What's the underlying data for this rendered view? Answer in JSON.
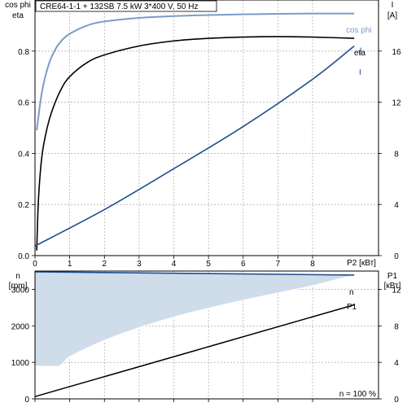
{
  "title": "CRE64-1-1 + 132SB  7.5 kW  3*400 V, 50 Hz",
  "colors": {
    "cosphi": "#7a9cc6",
    "eta": "#000000",
    "current": "#1f4f8f",
    "speed": "#1f4f8f",
    "p1": "#000000",
    "fill": "#cfdcea",
    "grid": "#9a9a9a"
  },
  "chart_data": [
    {
      "type": "line",
      "xlabel": "P2 [кВт]",
      "xlim": [
        0,
        9.9
      ],
      "xticks": [
        0,
        1,
        2,
        3,
        4,
        5,
        6,
        7,
        8
      ],
      "y_left": {
        "label_line1": "cos phi",
        "label_line2": "eta",
        "lim": [
          0,
          1.0
        ],
        "ticks": [
          0,
          0.2,
          0.4,
          0.6,
          0.8
        ]
      },
      "y_right": {
        "label_line1": "I",
        "label_line2": "[A]",
        "lim": [
          0,
          20
        ],
        "ticks": [
          0,
          4,
          8,
          12,
          16
        ]
      },
      "grid": true,
      "series": [
        {
          "name": "cos phi",
          "axis": "left",
          "x": [
            0.05,
            0.2,
            0.4,
            0.6,
            0.8,
            1.0,
            1.5,
            2,
            3,
            4,
            5,
            6,
            7,
            8,
            9.2
          ],
          "y": [
            0.49,
            0.64,
            0.75,
            0.81,
            0.846,
            0.868,
            0.9,
            0.916,
            0.93,
            0.937,
            0.941,
            0.944,
            0.946,
            0.947,
            0.947
          ]
        },
        {
          "name": "eta",
          "axis": "left",
          "x": [
            0.05,
            0.1,
            0.2,
            0.35,
            0.5,
            0.75,
            1.0,
            1.5,
            2,
            3,
            4,
            5,
            6,
            7,
            8,
            9.2
          ],
          "y": [
            0.02,
            0.22,
            0.39,
            0.5,
            0.57,
            0.65,
            0.7,
            0.755,
            0.785,
            0.82,
            0.84,
            0.85,
            0.855,
            0.857,
            0.855,
            0.85
          ]
        },
        {
          "name": "I",
          "axis": "right",
          "x": [
            0,
            2,
            4,
            6,
            8,
            9.2
          ],
          "y": [
            0.75,
            3.6,
            6.8,
            10.1,
            13.8,
            16.4
          ]
        }
      ]
    },
    {
      "type": "area",
      "xlim": [
        0,
        9.9
      ],
      "y_left": {
        "label_line1": "n",
        "label_line2": "[rpm]",
        "lim": [
          0,
          3500
        ],
        "ticks": [
          0,
          1000,
          2000,
          3000
        ]
      },
      "y_right": {
        "label_line1": "P1",
        "label_line2": "[кВт]",
        "lim": [
          0,
          14
        ],
        "ticks": [
          0,
          4,
          8,
          12
        ]
      },
      "annotation": "n = 100 %",
      "grid": true,
      "series": [
        {
          "name": "n",
          "axis": "left",
          "x": [
            0,
            9.2
          ],
          "y": [
            3480,
            3390
          ]
        },
        {
          "name": "n (min)",
          "axis": "left",
          "x": [
            0,
            0.7,
            1,
            2,
            3,
            4,
            5,
            6,
            7,
            8,
            9.2
          ],
          "y": [
            900,
            900,
            1150,
            1600,
            1950,
            2240,
            2480,
            2700,
            2900,
            3100,
            3390
          ]
        },
        {
          "name": "P1",
          "axis": "right",
          "x": [
            0,
            9.2
          ],
          "y": [
            0.25,
            10.3
          ]
        }
      ]
    }
  ]
}
